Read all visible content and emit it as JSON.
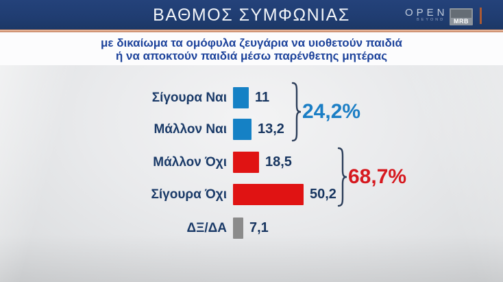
{
  "header": {
    "title": "ΒΑΘΜΟΣ ΣΥΜΦΩΝΙΑΣ",
    "open_logo": {
      "text": "OPEN",
      "subtext": "BEYOND"
    },
    "mrb_logo": "MRB"
  },
  "subtitle": {
    "line1": "με δικαίωμα τα ομόφυλα ζευγάρια να υιοθετούν παιδιά",
    "line2": "ή να αποκτούν παιδιά μέσω παρένθετης μητέρας"
  },
  "chart_data": {
    "type": "bar",
    "orientation": "horizontal",
    "unit": "%",
    "title": "ΒΑΘΜΟΣ ΣΥΜΦΩΝΙΑΣ",
    "categories": [
      "Σίγουρα Ναι",
      "Μάλλον Ναι",
      "Μάλλον Όχι",
      "Σίγουρα Όχι",
      "ΔΞ/ΔΑ"
    ],
    "values": [
      11,
      13.2,
      18.5,
      50.2,
      7.1
    ],
    "rows": [
      {
        "label": "Σίγουρα Ναι",
        "value": 11,
        "display": "11",
        "color": "#1581c5"
      },
      {
        "label": "Μάλλον Ναι",
        "value": 13.2,
        "display": "13,2",
        "color": "#1581c5"
      },
      {
        "label": "Μάλλον Όχι",
        "value": 18.5,
        "display": "18,5",
        "color": "#e01313"
      },
      {
        "label": "Σίγουρα Όχι",
        "value": 50.2,
        "display": "50,2",
        "color": "#e01313"
      },
      {
        "label": "ΔΞ/ΔΑ",
        "value": 7.1,
        "display": "7,1",
        "color": "#8b8b8b"
      }
    ],
    "groups": [
      {
        "label": "24,2%",
        "color": "#1b7ec5",
        "rows": [
          0,
          1
        ]
      },
      {
        "label": "68,7%",
        "color": "#d6191f",
        "rows": [
          2,
          3
        ]
      }
    ],
    "legend": "none",
    "grid": false
  },
  "colors": {
    "header_bg": "#203d72",
    "accent_line": "#d9895f",
    "subtitle_text": "#1c429b",
    "label_text": "#1a3a68",
    "value_text": "#16345f",
    "brace": "#2b3d59",
    "yes_bar": "#1581c5",
    "no_bar": "#e01313",
    "dk_bar": "#8b8b8b"
  }
}
